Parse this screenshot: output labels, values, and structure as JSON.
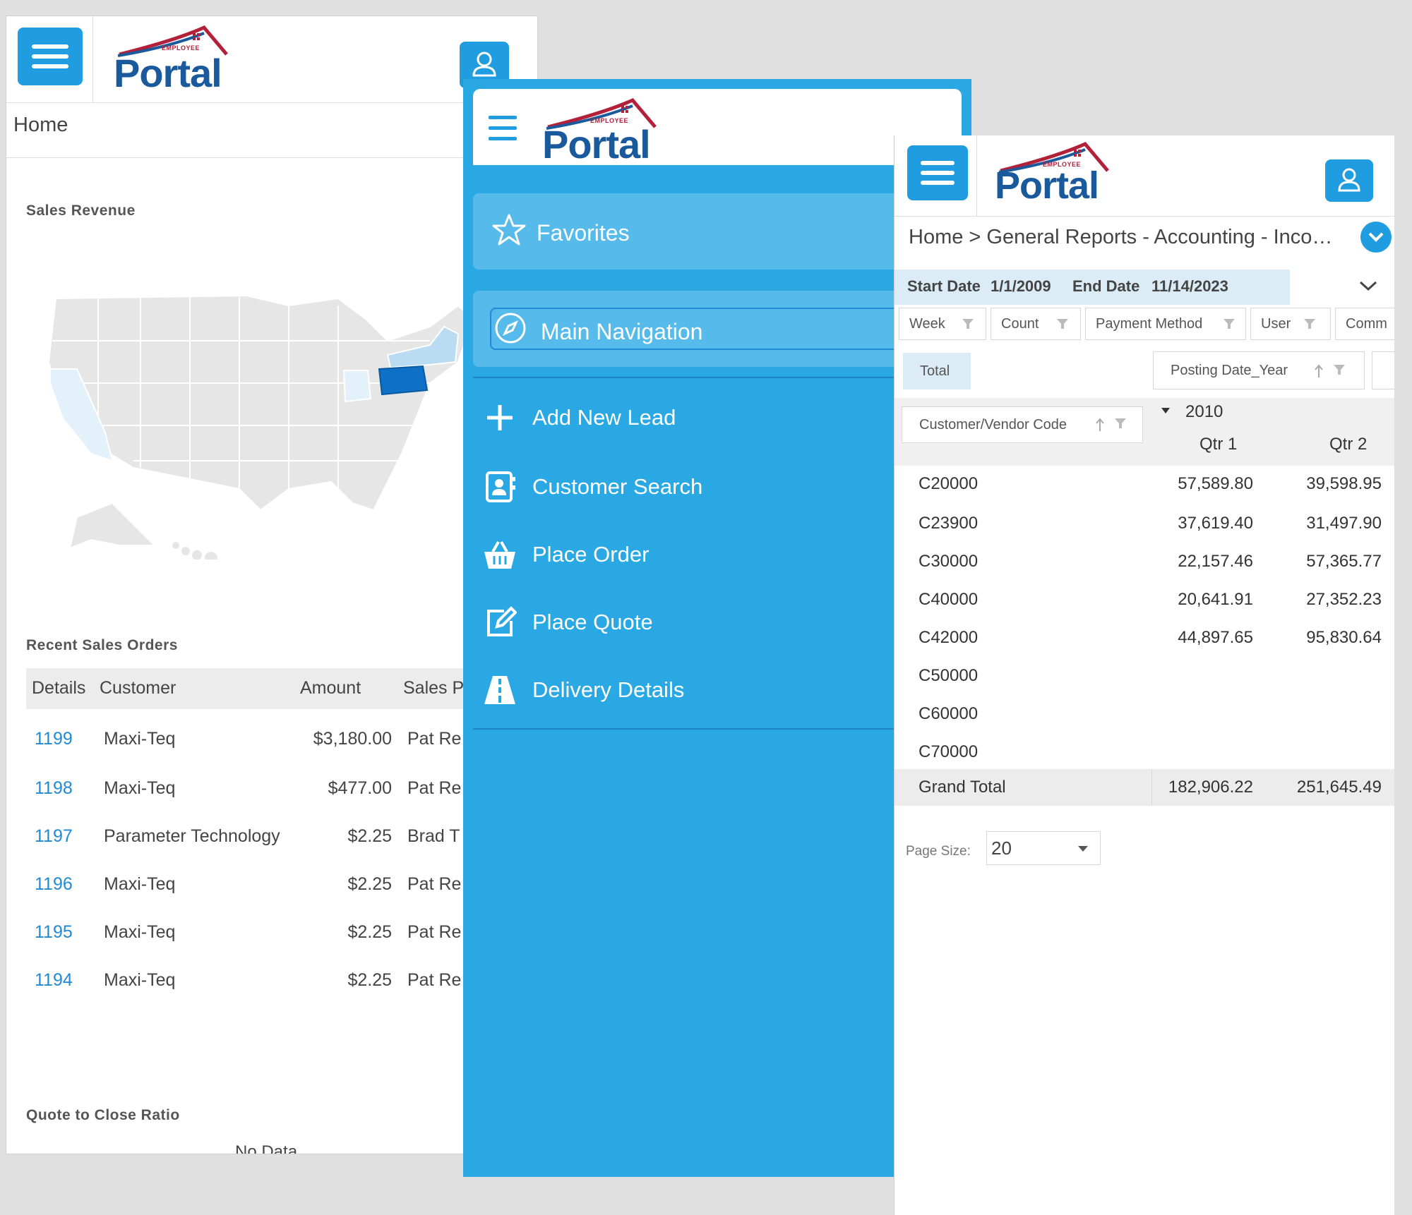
{
  "brand": {
    "logo_text": "Portal",
    "logo_subtext": "EMPLOYEE"
  },
  "home_panel": {
    "breadcrumb": "Home",
    "sales_revenue_title": "Sales Revenue",
    "recent_orders_title": "Recent Sales Orders",
    "columns": [
      "Details",
      "Customer",
      "Amount",
      "Sales P"
    ],
    "orders": [
      {
        "id": "1199",
        "customer": "Maxi-Teq",
        "amount": "$3,180.00",
        "rep": "Pat Re"
      },
      {
        "id": "1198",
        "customer": "Maxi-Teq",
        "amount": "$477.00",
        "rep": "Pat Re"
      },
      {
        "id": "1197",
        "customer": "Parameter Technology",
        "amount": "$2.25",
        "rep": "Brad T"
      },
      {
        "id": "1196",
        "customer": "Maxi-Teq",
        "amount": "$2.25",
        "rep": "Pat Re"
      },
      {
        "id": "1195",
        "customer": "Maxi-Teq",
        "amount": "$2.25",
        "rep": "Pat Re"
      },
      {
        "id": "1194",
        "customer": "Maxi-Teq",
        "amount": "$2.25",
        "rep": "Pat Re"
      }
    ],
    "quote_close_title": "Quote to Close Ratio",
    "quote_close_value": "No Data",
    "map_colors": {
      "base": "#e6e6e6",
      "light": "#e3f1fb",
      "mid": "#b9dcf3",
      "highlight": "#0f70c8"
    }
  },
  "nav_panel": {
    "favorites": "Favorites",
    "main_navigation": "Main Navigation",
    "items": [
      {
        "label": "Add New Lead",
        "icon": "plus-icon"
      },
      {
        "label": "Customer Search",
        "icon": "contact-book-icon"
      },
      {
        "label": "Place Order",
        "icon": "basket-icon"
      },
      {
        "label": "Place Quote",
        "icon": "edit-icon"
      },
      {
        "label": "Delivery Details",
        "icon": "road-icon"
      }
    ]
  },
  "report_panel": {
    "breadcrumb": "Home > General Reports - Accounting - Inco…",
    "start_date_label": "Start Date",
    "start_date": "1/1/2009",
    "end_date_label": "End Date",
    "end_date": "11/14/2023",
    "filter_chips": [
      "Week",
      "Count",
      "Payment Method",
      "User",
      "Comm"
    ],
    "total_label": "Total",
    "posting_year_chip": "Posting Date_Year",
    "row_field": "Customer/Vendor Code",
    "year": "2010",
    "quarters": [
      "Qtr 1",
      "Qtr 2"
    ],
    "rows": [
      {
        "code": "C20000",
        "q1": "57,589.80",
        "q2": "39,598.95"
      },
      {
        "code": "C23900",
        "q1": "37,619.40",
        "q2": "31,497.90"
      },
      {
        "code": "C30000",
        "q1": "22,157.46",
        "q2": "57,365.77"
      },
      {
        "code": "C40000",
        "q1": "20,641.91",
        "q2": "27,352.23"
      },
      {
        "code": "C42000",
        "q1": "44,897.65",
        "q2": "95,830.64"
      },
      {
        "code": "C50000",
        "q1": "",
        "q2": ""
      },
      {
        "code": "C60000",
        "q1": "",
        "q2": ""
      },
      {
        "code": "C70000",
        "q1": "",
        "q2": ""
      }
    ],
    "grand_total_label": "Grand Total",
    "grand_total_q1": "182,906.22",
    "grand_total_q2": "251,645.49",
    "page_size_label": "Page Size:",
    "page_size_value": "20"
  }
}
